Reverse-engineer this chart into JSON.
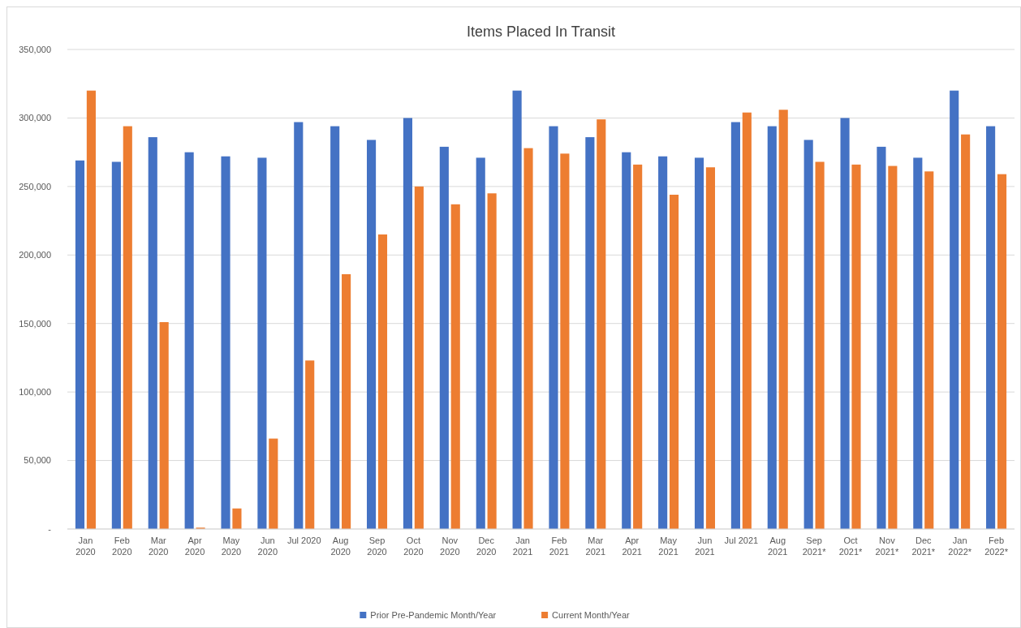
{
  "chart_data": {
    "type": "bar",
    "title": "Items Placed In Transit",
    "categories": [
      "Jan\n2020",
      "Feb\n2020",
      "Mar\n2020",
      "Apr\n2020",
      "May\n2020",
      "Jun\n2020",
      "Jul 2020",
      "Aug\n2020",
      "Sep\n2020",
      "Oct\n2020",
      "Nov\n2020",
      "Dec\n2020",
      "Jan\n2021",
      "Feb\n2021",
      "Mar\n2021",
      "Apr\n2021",
      "May\n2021",
      "Jun\n2021",
      "Jul 2021",
      "Aug\n2021",
      "Sep\n2021*",
      "Oct\n2021*",
      "Nov\n2021*",
      "Dec\n2021*",
      "Jan\n2022*",
      "Feb\n2022*"
    ],
    "series": [
      {
        "name": "Prior Pre-Pandemic Month/Year",
        "color": "#4472c4",
        "values": [
          269000,
          268000,
          286000,
          275000,
          272000,
          271000,
          297000,
          294000,
          284000,
          300000,
          279000,
          271000,
          320000,
          294000,
          286000,
          275000,
          272000,
          271000,
          297000,
          294000,
          284000,
          300000,
          279000,
          271000,
          320000,
          294000
        ]
      },
      {
        "name": "Current Month/Year",
        "color": "#ed7d31",
        "values": [
          320000,
          294000,
          151000,
          1000,
          15000,
          66000,
          123000,
          186000,
          215000,
          250000,
          237000,
          245000,
          278000,
          274000,
          299000,
          266000,
          244000,
          264000,
          304000,
          306000,
          268000,
          266000,
          265000,
          261000,
          288000,
          259000
        ]
      }
    ],
    "ylim": [
      0,
      350000
    ],
    "yticks": [
      {
        "value": 0,
        "label": "-"
      },
      {
        "value": 50000,
        "label": "50,000"
      },
      {
        "value": 100000,
        "label": "100,000"
      },
      {
        "value": 150000,
        "label": "150,000"
      },
      {
        "value": 200000,
        "label": "200,000"
      },
      {
        "value": 250000,
        "label": "250,000"
      },
      {
        "value": 300000,
        "label": "300,000"
      },
      {
        "value": 350000,
        "label": "350,000"
      }
    ],
    "grid": "y",
    "legend": "bottom"
  }
}
